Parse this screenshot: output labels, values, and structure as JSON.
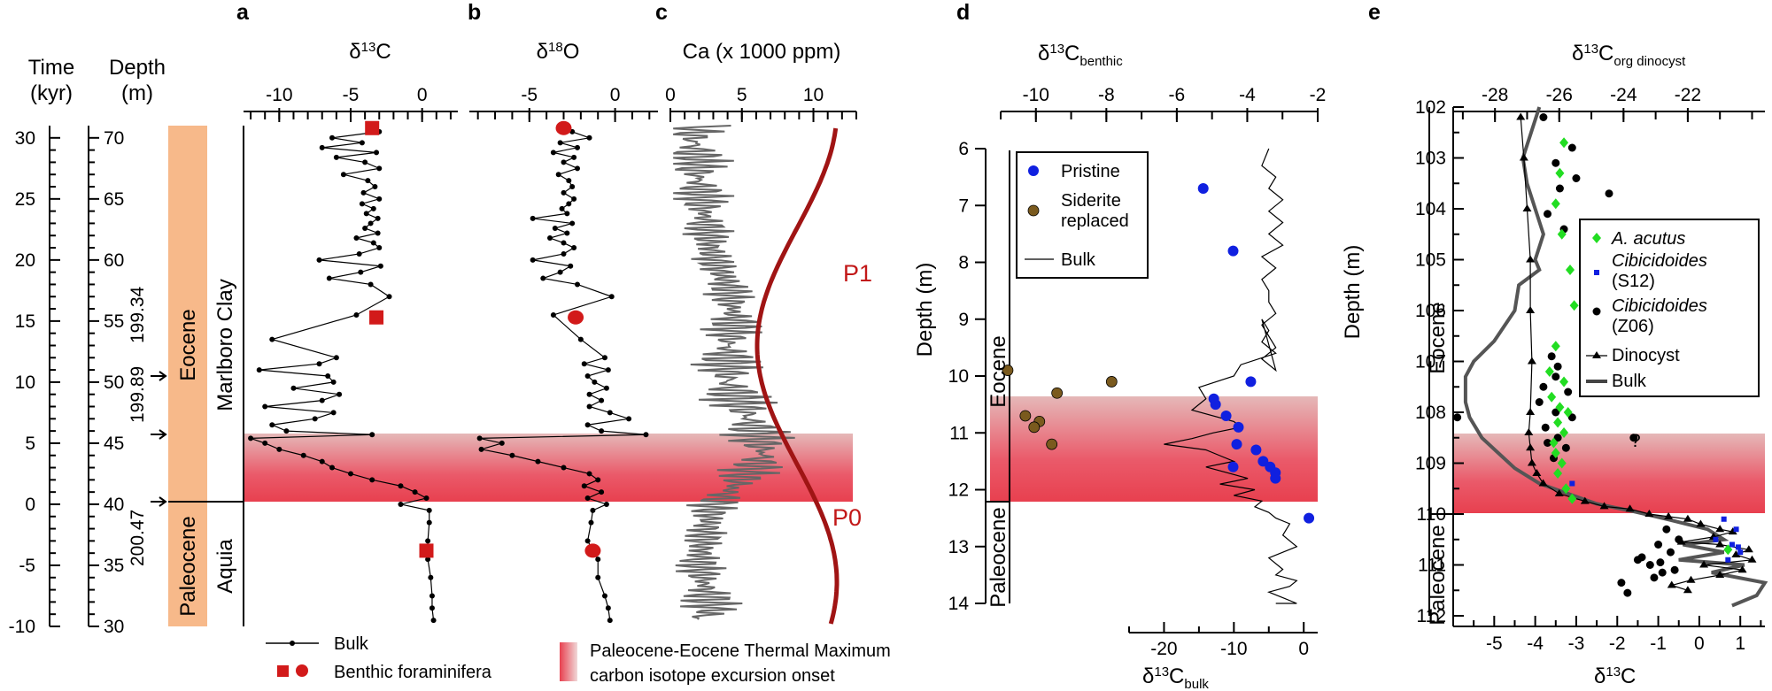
{
  "panels": {
    "a": {
      "label": "a",
      "title": "δ13C"
    },
    "b": {
      "label": "b",
      "title": "δ18O"
    },
    "c": {
      "label": "c",
      "title": "Ca (x 1000 ppm)"
    },
    "d": {
      "label": "d",
      "title": "δ13Cbenthic",
      "bottom_title": "δ13Cbulk"
    },
    "e": {
      "label": "e",
      "title": "δ13Corg dinocyst",
      "bottom_title": "δ13C"
    }
  },
  "left_axes": {
    "time_title": "Time",
    "time_unit": "(kyr)",
    "depth_title": "Depth",
    "depth_unit": "(m)",
    "age_markers": [
      "199.34",
      "199.89",
      "200.47"
    ]
  },
  "units": {
    "eocene": "Eocene",
    "paleocene": "Paleocene",
    "marlboro": "Marlboro Clay",
    "aquia": "Aquia"
  },
  "peaks": {
    "p1": "P1",
    "p0": "P0"
  },
  "legend_bottom": {
    "bulk": "Bulk",
    "benthic": "Benthic foraminifera",
    "petm_line1": "Paleocene-Eocene Thermal Maximum",
    "petm_line2": "carbon isotope excursion onset"
  },
  "legend_d": {
    "pristine": "Pristine",
    "siderite1": "Siderite",
    "siderite2": "replaced",
    "bulk": "Bulk"
  },
  "legend_e": {
    "acutus": "A. acutus",
    "cib1": "Cibicidoides",
    "cib1_sub": "(S12)",
    "cib2": "Cibicidoides",
    "cib2_sub": "(Z06)",
    "dinocyst": "Dinocyst",
    "bulk": "Bulk"
  },
  "axis_e": {
    "ylabel": "Depth (m)",
    "eocene": "Eocene",
    "paleocene": "Paleocene",
    "question": "?"
  },
  "axis_d": {
    "ylabel": "Depth (m)",
    "eocene": "Eocene",
    "paleocene": "Paleocene"
  },
  "colors": {
    "red": "#d21a1a",
    "darkred": "#a01414",
    "blue": "#1020e0",
    "brown": "#7a5a1e",
    "green": "#22dd22",
    "gray": "#666666",
    "petm": "#e8404f"
  },
  "chart_data": [
    {
      "type": "line",
      "panel": "left-axes",
      "time_ticks": [
        30,
        25,
        20,
        15,
        10,
        5,
        0,
        -5,
        -10
      ],
      "depth_ticks": [
        70,
        65,
        60,
        55,
        50,
        45,
        40,
        35,
        30
      ],
      "time_range": [
        -10,
        31
      ],
      "depth_range": [
        30,
        71
      ]
    },
    {
      "type": "line",
      "panel": "a",
      "title": "δ13C",
      "xlim": [
        -12.5,
        2.5
      ],
      "x_ticks": [
        -10,
        -5,
        0
      ],
      "x_tick_labels": [
        "-10",
        "-5",
        "0"
      ],
      "ylim": [
        30,
        71
      ],
      "ylabel": "Depth (m)",
      "bulk": {
        "y": [
          70.5,
          70.0,
          69.6,
          69.2,
          68.8,
          68.4,
          68.0,
          67.5,
          67.0,
          66.5,
          66.0,
          65.5,
          65.0,
          64.6,
          64.2,
          63.8,
          63.4,
          63.0,
          62.6,
          62.2,
          61.8,
          61.4,
          61.0,
          60.5,
          60.0,
          59.5,
          59.0,
          58.5,
          58.0,
          57.0,
          55.5,
          53.5,
          52.0,
          51.5,
          51.0,
          50.5,
          50.0,
          49.5,
          49.0,
          48.5,
          48.0,
          47.5,
          47.0,
          46.5,
          46.0,
          45.7,
          45.4,
          45.0,
          44.5,
          44.0,
          43.5,
          43.0,
          42.5,
          42.0,
          41.5,
          41.0,
          40.5,
          40.0,
          39.5,
          38.5,
          37.0,
          35.5,
          34.0,
          32.5,
          31.5,
          30.5
        ],
        "x": [
          -3.0,
          -6.3,
          -4.2,
          -7.0,
          -3.2,
          -6.0,
          -4.0,
          -3.0,
          -5.5,
          -3.8,
          -3.3,
          -4.1,
          -3.0,
          -4.2,
          -3.4,
          -3.9,
          -3.1,
          -3.6,
          -4.0,
          -3.1,
          -4.6,
          -3.4,
          -3.0,
          -4.4,
          -7.2,
          -2.9,
          -4.3,
          -6.5,
          -3.6,
          -2.3,
          -4.6,
          -10.5,
          -6.0,
          -7.2,
          -11.4,
          -6.6,
          -6.2,
          -9.0,
          -5.8,
          -7.0,
          -11.0,
          -6.2,
          -7.5,
          -10.5,
          -9.5,
          -3.5,
          -12.0,
          -11.0,
          -10.0,
          -8.3,
          -7.0,
          -6.3,
          -5.0,
          -3.5,
          -1.5,
          -0.5,
          0.3,
          -1.5,
          0.5,
          0.5,
          0.4,
          0.4,
          0.6,
          0.7,
          0.7,
          0.8
        ]
      },
      "benthic": {
        "y": [
          70.8,
          55.3,
          36.2
        ],
        "x": [
          -3.5,
          -3.2,
          0.3
        ]
      }
    },
    {
      "type": "line",
      "panel": "b",
      "title": "δ18O",
      "xlim": [
        -8.5,
        2.5
      ],
      "x_ticks": [
        -5,
        0
      ],
      "x_tick_labels": [
        "-5",
        "0"
      ],
      "bulk": {
        "y": [
          70.5,
          70.0,
          69.6,
          69.2,
          68.8,
          68.4,
          68.0,
          67.5,
          67.0,
          66.5,
          66.0,
          65.5,
          65.0,
          64.6,
          64.2,
          63.8,
          63.4,
          63.0,
          62.6,
          62.2,
          61.8,
          61.4,
          61.0,
          60.5,
          60.0,
          59.5,
          59.0,
          58.5,
          58.0,
          57.0,
          55.5,
          53.5,
          52.0,
          51.5,
          51.0,
          50.5,
          50.0,
          49.5,
          49.0,
          48.5,
          48.0,
          47.5,
          47.0,
          46.5,
          46.0,
          45.7,
          45.4,
          45.0,
          44.5,
          44.0,
          43.5,
          43.0,
          42.5,
          42.0,
          41.5,
          41.0,
          40.5,
          40.0,
          39.5,
          38.5,
          37.0,
          35.5,
          34.0,
          32.5,
          31.5,
          30.5
        ],
        "x": [
          -2.5,
          -1.5,
          -3.2,
          -2.2,
          -3.6,
          -2.4,
          -3.0,
          -2.2,
          -3.3,
          -2.7,
          -2.5,
          -3.0,
          -2.4,
          -2.7,
          -3.1,
          -2.8,
          -4.8,
          -2.5,
          -3.5,
          -2.8,
          -3.8,
          -3.0,
          -2.4,
          -3.0,
          -4.8,
          -2.6,
          -3.2,
          -4.2,
          -2.2,
          -0.2,
          -3.6,
          -2.0,
          -0.6,
          -1.8,
          -0.4,
          -1.6,
          -1.2,
          -0.5,
          -1.5,
          -0.8,
          -1.5,
          -0.3,
          0.8,
          -1.6,
          -0.8,
          1.8,
          -7.9,
          -6.6,
          -7.8,
          -6.0,
          -4.5,
          -3.0,
          -1.5,
          -1.0,
          -1.8,
          -0.8,
          -1.6,
          -0.5,
          -1.3,
          -1.4,
          -1.6,
          -1.0,
          -1.0,
          -0.6,
          -0.4,
          -0.3
        ]
      },
      "benthic": {
        "y": [
          70.8,
          55.3,
          36.2
        ],
        "x": [
          -3.0,
          -2.3,
          -1.3
        ]
      }
    },
    {
      "type": "line",
      "panel": "c",
      "title": "Ca (x 1000 ppm)",
      "xlim": [
        0,
        13
      ],
      "x_ticks": [
        0,
        5,
        10
      ],
      "x_tick_labels": [
        "0",
        "5",
        "10"
      ],
      "annotations": [
        "P1",
        "P0"
      ]
    },
    {
      "type": "scatter",
      "panel": "d",
      "title": "δ13Cbenthic",
      "xlim_top": [
        -11,
        -2
      ],
      "x_ticks_top": [
        -10,
        -8,
        -6,
        -4,
        -2
      ],
      "bottom_title": "δ13Cbulk",
      "xlim_bottom": [
        -25,
        2
      ],
      "x_ticks_bottom": [
        -20,
        -10,
        0
      ],
      "ylabel": "Depth (m)",
      "ylim": [
        14,
        6
      ],
      "y_ticks": [
        6,
        7,
        8,
        9,
        10,
        11,
        12,
        13,
        14
      ],
      "series": [
        {
          "name": "Pristine",
          "x": [
            -5.25,
            -4.4,
            -3.9,
            -4.95,
            -4.9,
            -4.6,
            -4.25,
            -4.3,
            -3.75,
            -3.55,
            -3.35,
            -3.2,
            -3.2,
            -4.4,
            -2.25
          ],
          "y": [
            6.7,
            7.8,
            10.1,
            10.4,
            10.5,
            10.7,
            10.9,
            11.2,
            11.3,
            11.5,
            11.6,
            11.7,
            11.8,
            11.6,
            12.5
          ]
        },
        {
          "name": "Siderite replaced",
          "x": [
            -10.8,
            -9.4,
            -7.85,
            -10.3,
            -9.9,
            -10.05,
            -9.55
          ],
          "y": [
            9.9,
            10.3,
            10.1,
            10.7,
            10.8,
            10.9,
            11.2
          ]
        },
        {
          "name": "Bulk",
          "x_units": "δ13Cbulk",
          "x": [
            -5,
            -6,
            -4,
            -5,
            -3,
            -5,
            -3,
            -5,
            -3,
            -6,
            -4,
            -6,
            -5,
            -5,
            -4,
            -6,
            -5,
            -4,
            -6,
            -4,
            -6,
            -5,
            -6,
            -4,
            -9,
            -10,
            -15,
            -14,
            -16,
            -10,
            -9,
            -13,
            -16,
            -20,
            -14,
            -12,
            -10,
            -14,
            -11,
            -8,
            -12,
            -7,
            -10,
            -6,
            -7,
            -5,
            -4,
            -2,
            -3,
            -1,
            -5,
            -3,
            -4,
            -1,
            -2,
            -5,
            -3,
            -1,
            -4
          ],
          "y": [
            6.0,
            6.3,
            6.5,
            6.7,
            6.9,
            7.1,
            7.3,
            7.5,
            7.7,
            7.9,
            8.1,
            8.3,
            8.5,
            8.7,
            8.9,
            9.1,
            9.3,
            9.5,
            9.7,
            9.9,
            9.0,
            9.2,
            9.4,
            9.6,
            9.8,
            10.0,
            10.2,
            10.4,
            10.6,
            10.8,
            10.9,
            11.0,
            11.1,
            11.2,
            11.3,
            11.4,
            11.5,
            11.6,
            11.7,
            11.8,
            11.9,
            12.0,
            12.1,
            12.2,
            12.3,
            12.4,
            12.5,
            12.6,
            12.8,
            13.0,
            13.2,
            13.4,
            13.5,
            13.6,
            13.7,
            13.8,
            13.9,
            14.0,
            14.0
          ]
        }
      ],
      "units": [
        "Eocene",
        "Paleocene"
      ]
    },
    {
      "type": "scatter",
      "panel": "e",
      "title": "δ13Corg dinocyst",
      "xlim_top": [
        -29.3,
        -19.6
      ],
      "x_ticks_top": [
        -28,
        -26,
        -24,
        -22
      ],
      "bottom_title": "δ13C",
      "xlim_bottom": [
        -6.0,
        1.6
      ],
      "x_ticks_bottom": [
        -5,
        -4,
        -3,
        -2,
        -1,
        0,
        1
      ],
      "ylabel": "Depth (m)",
      "ylim": [
        112,
        102
      ],
      "y_ticks": [
        102,
        103,
        104,
        105,
        106,
        107,
        108,
        109,
        110,
        111,
        112
      ],
      "series": [
        {
          "name": "A. acutus",
          "x": [
            -3.3,
            -3.4,
            -3.5,
            -3.35,
            -3.15,
            -3.05,
            -3.5,
            -3.65,
            -3.3,
            -3.6,
            -3.4,
            -3.2,
            -3.45,
            -3.3,
            -3.55,
            -3.5,
            -3.35,
            -3.45,
            -3.25,
            -3.1,
            0.7
          ],
          "y": [
            102.7,
            103.3,
            103.9,
            104.5,
            105.2,
            105.9,
            106.7,
            107.2,
            107.4,
            107.7,
            107.9,
            108.0,
            108.2,
            108.4,
            108.6,
            108.8,
            109.0,
            109.2,
            109.5,
            109.7,
            110.7
          ]
        },
        {
          "name": "Cibicidoides (S12)",
          "x": [
            -3.1,
            0.6,
            0.9,
            0.4,
            0.8,
            0.95,
            1.0,
            0.7
          ],
          "y": [
            109.4,
            110.1,
            110.3,
            110.5,
            110.6,
            110.65,
            110.75,
            110.9
          ]
        },
        {
          "name": "Cibicidoides (Z06)",
          "x": [
            -3.8,
            -3.1,
            -3.5,
            -3.0,
            -3.4,
            -3.7,
            -3.3,
            -2.2,
            -3.6,
            -3.45,
            -3.5,
            -3.8,
            -3.2,
            -3.9,
            -3.5,
            -3.1,
            -3.75,
            -3.45,
            -3.7,
            -3.25,
            -3.55,
            -5.9,
            -1.6,
            -0.8,
            -0.5,
            -1.0,
            -0.7,
            -1.4,
            -0.95,
            -1.2,
            -0.6,
            -1.5,
            -0.9,
            -1.1,
            -1.9,
            -1.75
          ],
          "y": [
            102.2,
            102.8,
            103.1,
            103.4,
            103.6,
            104.1,
            104.4,
            103.7,
            106.9,
            107.1,
            107.3,
            107.5,
            107.6,
            107.8,
            108.0,
            108.1,
            108.3,
            108.5,
            108.6,
            108.7,
            108.9,
            108.1,
            108.5,
            110.3,
            110.5,
            110.6,
            110.75,
            110.85,
            110.95,
            111.0,
            111.1,
            110.9,
            111.15,
            111.25,
            111.35,
            111.55
          ]
        },
        {
          "name": "Dinocyst",
          "x_units": "δ13Corg",
          "x": [
            -27.2,
            -27.1,
            -27.0,
            -26.9,
            -26.9,
            -26.85,
            -26.9,
            -26.95,
            -26.9,
            -26.85,
            -26.7,
            -26.5,
            -26.0,
            -25.2,
            -24.6,
            -23.8,
            -23.2,
            -22.6,
            -22.0,
            -21.6,
            -21.0,
            -20.6,
            -21.2,
            -22.2,
            -21.0,
            -20.1,
            -20.5,
            -20.0,
            -21.5,
            -20.3,
            -21.0,
            -21.9,
            -22.5,
            -22.0
          ],
          "y": [
            102.2,
            103.0,
            104.0,
            105.0,
            106.0,
            107.0,
            108.0,
            108.4,
            108.7,
            109.0,
            109.2,
            109.4,
            109.6,
            109.75,
            109.85,
            109.9,
            110.0,
            110.05,
            110.1,
            110.2,
            110.3,
            110.35,
            110.45,
            110.55,
            110.6,
            110.7,
            110.8,
            110.9,
            111.0,
            111.1,
            111.2,
            111.3,
            111.4,
            111.5
          ]
        },
        {
          "name": "Bulk",
          "x": [
            -3.9,
            -4.1,
            -4.3,
            -4.2,
            -4.0,
            -3.8,
            -4.0,
            -3.9,
            -4.4,
            -4.5,
            -5.0,
            -5.5,
            -5.7,
            -5.7,
            -5.6,
            -5.3,
            -4.9,
            -4.5,
            -3.9,
            -3.2,
            -2.5,
            -1.6,
            -0.8,
            0.2,
            0.6,
            -0.4,
            0.6,
            -0.5,
            1.1,
            0.3,
            1.6,
            1.4,
            0.8
          ],
          "y": [
            102.0,
            102.5,
            103.0,
            103.5,
            104.0,
            104.5,
            105.0,
            105.2,
            105.5,
            106.0,
            106.6,
            107.0,
            107.3,
            107.8,
            108.1,
            108.5,
            108.8,
            109.1,
            109.4,
            109.6,
            109.8,
            109.95,
            110.1,
            110.3,
            110.5,
            110.6,
            110.75,
            110.9,
            111.0,
            111.15,
            111.35,
            111.6,
            111.8
          ]
        }
      ],
      "units": [
        "Eocene",
        "Paleocene"
      ]
    }
  ]
}
